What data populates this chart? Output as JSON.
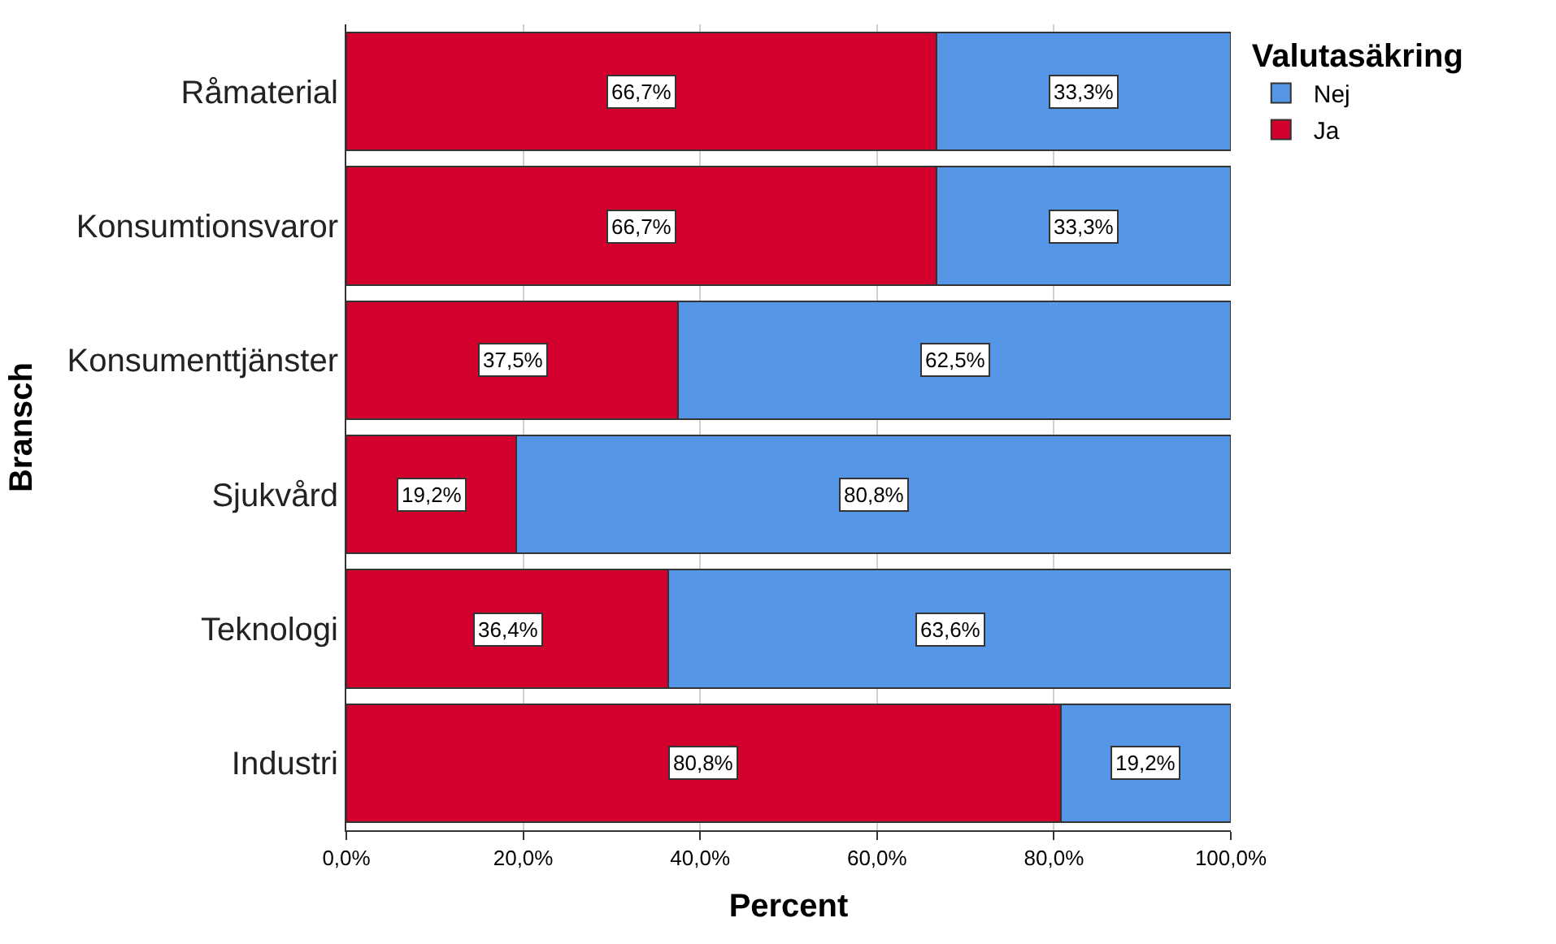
{
  "chart_data": {
    "type": "bar",
    "orientation": "horizontal",
    "stacked": true,
    "xlabel": "Percent",
    "ylabel": "Bransch",
    "legend_title": "Valutasäkring",
    "categories": [
      "Råmaterial",
      "Konsumtionsvaror",
      "Konsumenttjänster",
      "Sjukvård",
      "Teknologi",
      "Industri"
    ],
    "series": [
      {
        "name": "Ja",
        "color": "#d1002c",
        "values": [
          66.7,
          66.7,
          37.5,
          19.2,
          36.4,
          80.8
        ],
        "value_labels": [
          "66,7%",
          "66,7%",
          "37,5%",
          "19,2%",
          "36,4%",
          "80,8%"
        ]
      },
      {
        "name": "Nej",
        "color": "#5596e6",
        "values": [
          33.3,
          33.3,
          62.5,
          80.8,
          63.6,
          19.2
        ],
        "value_labels": [
          "33,3%",
          "33,3%",
          "62,5%",
          "80,8%",
          "63,6%",
          "19,2%"
        ]
      }
    ],
    "xlim": [
      0,
      100
    ],
    "xticks": [
      {
        "value": 0,
        "label": "0,0%"
      },
      {
        "value": 20,
        "label": "20,0%"
      },
      {
        "value": 40,
        "label": "40,0%"
      },
      {
        "value": 60,
        "label": "60,0%"
      },
      {
        "value": 80,
        "label": "80,0%"
      },
      {
        "value": 100,
        "label": "100,0%"
      }
    ],
    "grid": "x",
    "legend": "top right"
  }
}
